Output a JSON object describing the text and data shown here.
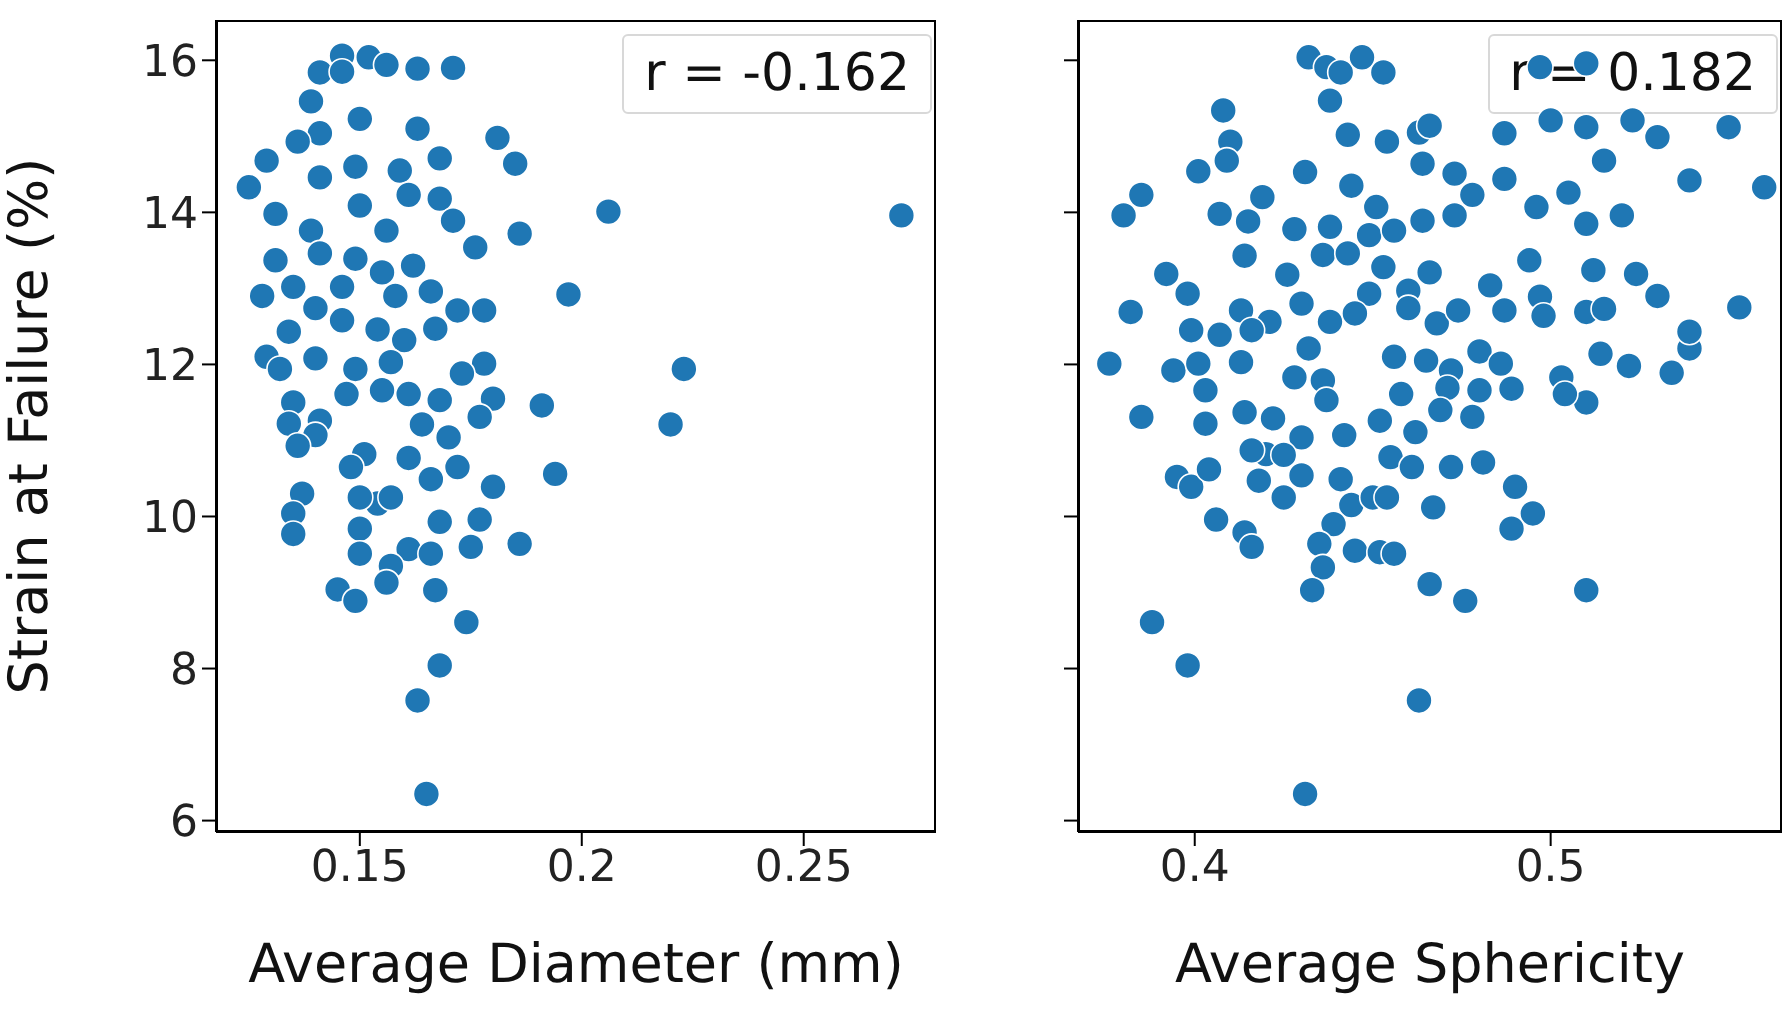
{
  "chart_data": [
    {
      "type": "scatter",
      "xlabel": "Average Diameter (mm)",
      "ylabel": "Strain at Failure (%)",
      "annotations": [
        "r = -0.162"
      ],
      "marker": "circle",
      "xlim": [
        0.1176,
        0.2798
      ],
      "xticks": [
        0.15,
        0.2,
        0.25
      ],
      "ylim": [
        5.85,
        16.53
      ],
      "yticks": [
        6,
        8,
        10,
        12,
        14,
        16
      ],
      "series": [
        {
          "color": "#1f77b4",
          "x": [
            0.146,
            0.152,
            0.156,
            0.163,
            0.171,
            0.141,
            0.146,
            0.139,
            0.15,
            0.141,
            0.136,
            0.163,
            0.181,
            0.185,
            0.168,
            0.129,
            0.125,
            0.141,
            0.149,
            0.159,
            0.161,
            0.168,
            0.206,
            0.272,
            0.131,
            0.15,
            0.139,
            0.171,
            0.156,
            0.186,
            0.176,
            0.131,
            0.149,
            0.141,
            0.162,
            0.155,
            0.146,
            0.135,
            0.128,
            0.158,
            0.166,
            0.197,
            0.14,
            0.172,
            0.178,
            0.146,
            0.154,
            0.134,
            0.167,
            0.16,
            0.129,
            0.14,
            0.149,
            0.157,
            0.178,
            0.132,
            0.223,
            0.173,
            0.155,
            0.161,
            0.168,
            0.135,
            0.147,
            0.18,
            0.191,
            0.177,
            0.164,
            0.22,
            0.141,
            0.134,
            0.14,
            0.136,
            0.17,
            0.151,
            0.161,
            0.172,
            0.194,
            0.148,
            0.166,
            0.18,
            0.137,
            0.154,
            0.157,
            0.15,
            0.135,
            0.135,
            0.15,
            0.168,
            0.177,
            0.15,
            0.161,
            0.166,
            0.175,
            0.186,
            0.157,
            0.156,
            0.145,
            0.149,
            0.167,
            0.174,
            0.168,
            0.163,
            0.165
          ],
          "values": [
            16.06,
            16.04,
            15.94,
            15.89,
            15.9,
            15.84,
            15.85,
            15.46,
            15.23,
            15.04,
            14.93,
            15.1,
            14.98,
            14.64,
            14.71,
            14.68,
            14.33,
            14.46,
            14.6,
            14.55,
            14.23,
            14.18,
            14.01,
            13.96,
            13.98,
            14.09,
            13.76,
            13.89,
            13.76,
            13.72,
            13.54,
            13.37,
            13.39,
            13.46,
            13.3,
            13.21,
            13.02,
            13.02,
            12.9,
            12.9,
            12.96,
            12.92,
            12.74,
            12.71,
            12.71,
            12.58,
            12.46,
            12.43,
            12.47,
            12.32,
            12.1,
            12.08,
            11.94,
            12.03,
            12.01,
            11.94,
            11.94,
            11.88,
            11.66,
            11.61,
            11.53,
            11.5,
            11.61,
            11.55,
            11.46,
            11.31,
            11.21,
            11.21,
            11.26,
            11.22,
            11.07,
            10.93,
            11.04,
            10.82,
            10.77,
            10.65,
            10.56,
            10.65,
            10.49,
            10.39,
            10.3,
            10.17,
            10.25,
            10.25,
            10.04,
            9.77,
            9.84,
            9.93,
            9.96,
            9.51,
            9.57,
            9.51,
            9.6,
            9.64,
            9.35,
            9.13,
            9.04,
            8.89,
            9.03,
            8.61,
            8.04,
            7.58,
            6.35
          ]
        }
      ]
    },
    {
      "type": "scatter",
      "xlabel": "Average Sphericity",
      "annotations": [
        "r = 0.182"
      ],
      "marker": "circle",
      "tick_labels": "x",
      "xlim": [
        0.3672,
        0.565
      ],
      "xticks": [
        0.4,
        0.5
      ],
      "ylim": [
        5.85,
        16.53
      ],
      "yticks": [
        6,
        8,
        10,
        12,
        14,
        16
      ],
      "series": [
        {
          "color": "#1f77b4",
          "x": [
            0.432,
            0.437,
            0.441,
            0.447,
            0.453,
            0.438,
            0.443,
            0.454,
            0.463,
            0.466,
            0.487,
            0.497,
            0.51,
            0.5,
            0.51,
            0.523,
            0.53,
            0.55,
            0.515,
            0.539,
            0.56,
            0.408,
            0.41,
            0.409,
            0.401,
            0.385,
            0.38,
            0.407,
            0.419,
            0.431,
            0.444,
            0.451,
            0.464,
            0.473,
            0.478,
            0.487,
            0.496,
            0.505,
            0.51,
            0.52,
            0.415,
            0.428,
            0.438,
            0.449,
            0.456,
            0.464,
            0.473,
            0.414,
            0.436,
            0.443,
            0.453,
            0.466,
            0.494,
            0.512,
            0.524,
            0.392,
            0.398,
            0.426,
            0.43,
            0.449,
            0.46,
            0.483,
            0.497,
            0.53,
            0.553,
            0.382,
            0.399,
            0.413,
            0.421,
            0.438,
            0.445,
            0.46,
            0.468,
            0.474,
            0.487,
            0.498,
            0.51,
            0.515,
            0.407,
            0.416,
            0.432,
            0.456,
            0.465,
            0.472,
            0.48,
            0.486,
            0.514,
            0.522,
            0.539,
            0.539,
            0.376,
            0.394,
            0.401,
            0.413,
            0.428,
            0.436,
            0.458,
            0.471,
            0.48,
            0.489,
            0.503,
            0.534,
            0.403,
            0.51,
            0.504,
            0.385,
            0.403,
            0.414,
            0.422,
            0.437,
            0.452,
            0.462,
            0.469,
            0.478,
            0.442,
            0.43,
            0.42,
            0.416,
            0.425,
            0.455,
            0.461,
            0.472,
            0.481,
            0.395,
            0.399,
            0.404,
            0.418,
            0.43,
            0.441,
            0.425,
            0.444,
            0.45,
            0.454,
            0.467,
            0.49,
            0.495,
            0.406,
            0.414,
            0.416,
            0.439,
            0.435,
            0.445,
            0.452,
            0.456,
            0.489,
            0.436,
            0.433,
            0.466,
            0.476,
            0.51,
            0.388,
            0.398,
            0.463,
            0.431
          ],
          "values": [
            16.04,
            15.91,
            15.84,
            16.04,
            15.84,
            15.47,
            15.02,
            14.93,
            15.05,
            15.14,
            15.04,
            15.91,
            15.96,
            15.21,
            15.12,
            15.21,
            14.99,
            15.12,
            14.68,
            14.42,
            14.33,
            15.34,
            14.93,
            14.68,
            14.54,
            14.23,
            13.96,
            13.98,
            14.2,
            14.53,
            14.35,
            14.07,
            14.64,
            14.51,
            14.23,
            14.44,
            14.07,
            14.26,
            13.85,
            13.96,
            13.88,
            13.78,
            13.81,
            13.7,
            13.76,
            13.89,
            13.96,
            13.43,
            13.44,
            13.46,
            13.28,
            13.21,
            13.37,
            13.24,
            13.19,
            13.19,
            12.93,
            13.18,
            12.8,
            12.93,
            12.97,
            13.04,
            12.89,
            12.9,
            12.75,
            12.69,
            12.45,
            12.71,
            12.56,
            12.56,
            12.67,
            12.74,
            12.54,
            12.71,
            12.71,
            12.64,
            12.69,
            12.73,
            12.39,
            12.45,
            12.21,
            12.1,
            12.05,
            11.92,
            12.17,
            12.01,
            12.14,
            11.98,
            12.21,
            12.43,
            12.01,
            11.92,
            12.01,
            12.03,
            11.83,
            11.79,
            11.61,
            11.69,
            11.66,
            11.68,
            11.83,
            11.89,
            11.66,
            11.5,
            11.61,
            11.31,
            11.22,
            11.37,
            11.29,
            11.53,
            11.26,
            11.11,
            11.4,
            11.31,
            11.07,
            11.04,
            10.82,
            10.87,
            10.81,
            10.78,
            10.65,
            10.65,
            10.71,
            10.52,
            10.39,
            10.62,
            10.47,
            10.54,
            10.49,
            10.25,
            10.15,
            10.25,
            10.25,
            10.12,
            10.39,
            10.04,
            9.96,
            9.79,
            9.6,
            9.9,
            9.64,
            9.55,
            9.53,
            9.51,
            9.84,
            9.33,
            9.03,
            9.11,
            8.89,
            9.03,
            8.61,
            8.04,
            7.58,
            6.35
          ]
        }
      ]
    }
  ]
}
